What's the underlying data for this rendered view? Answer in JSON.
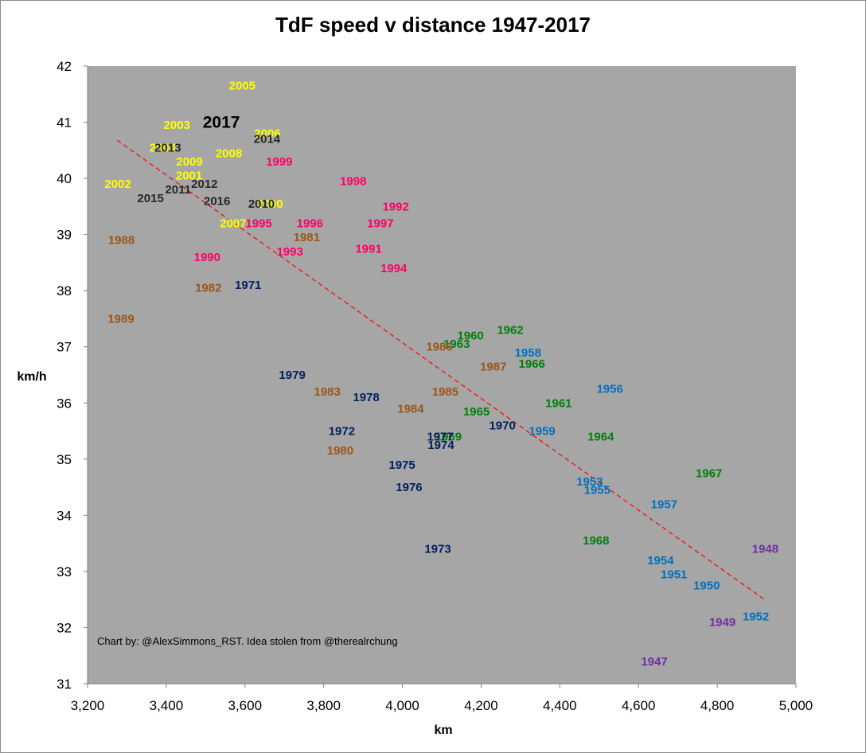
{
  "chart_data": {
    "type": "scatter",
    "title": "TdF speed v distance 1947-2017",
    "xlabel": "km",
    "ylabel": "km/h",
    "xlim": [
      3200,
      5000
    ],
    "ylim": [
      31,
      42
    ],
    "x_ticks": [
      "3,200",
      "3,400",
      "3,600",
      "3,800",
      "4,000",
      "4,200",
      "4,400",
      "4,600",
      "4,800",
      "5,000"
    ],
    "y_ticks": [
      "31",
      "32",
      "33",
      "34",
      "35",
      "36",
      "37",
      "38",
      "39",
      "40",
      "41",
      "42"
    ],
    "grid": false,
    "legend": "none",
    "plot_background": "#a6a6a6",
    "annotation": "Chart by: @AlexSimmons_RST. Idea stolen from  @therealrchung",
    "trendline": {
      "color": "#ff0000",
      "style": "dashed",
      "from": [
        3275,
        40.68
      ],
      "to": [
        4920,
        32.5
      ]
    },
    "decade_colors": {
      "1940s": "#7030a0",
      "1950s": "#0070c0",
      "1960s": "#00800a",
      "1970s": "#002060",
      "1980s": "#9c5518",
      "1990s": "#ff0066",
      "2000s": "#ffff00",
      "2010s": "#262626"
    },
    "points": [
      {
        "label": "1947",
        "x": 4640,
        "y": 31.4,
        "color": "#7030a0"
      },
      {
        "label": "1948",
        "x": 4922,
        "y": 33.4,
        "color": "#7030a0"
      },
      {
        "label": "1949",
        "x": 4813,
        "y": 32.1,
        "color": "#7030a0"
      },
      {
        "label": "1950",
        "x": 4773,
        "y": 32.75,
        "color": "#0070c0"
      },
      {
        "label": "1951",
        "x": 4690,
        "y": 32.95,
        "color": "#0070c0"
      },
      {
        "label": "1952",
        "x": 4898,
        "y": 32.2,
        "color": "#0070c0"
      },
      {
        "label": "1953",
        "x": 4476,
        "y": 34.6,
        "color": "#0070c0"
      },
      {
        "label": "1954",
        "x": 4656,
        "y": 33.2,
        "color": "#0070c0"
      },
      {
        "label": "1955",
        "x": 4495,
        "y": 34.45,
        "color": "#0070c0"
      },
      {
        "label": "1956",
        "x": 4527,
        "y": 36.25,
        "color": "#0070c0"
      },
      {
        "label": "1957",
        "x": 4665,
        "y": 34.2,
        "color": "#0070c0"
      },
      {
        "label": "1958",
        "x": 4319,
        "y": 36.9,
        "color": "#0070c0"
      },
      {
        "label": "1959",
        "x": 4355,
        "y": 35.5,
        "color": "#0070c0"
      },
      {
        "label": "1960",
        "x": 4173,
        "y": 37.2,
        "color": "#00800a"
      },
      {
        "label": "1961",
        "x": 4397,
        "y": 36.0,
        "color": "#00800a"
      },
      {
        "label": "1962",
        "x": 4274,
        "y": 37.3,
        "color": "#00800a"
      },
      {
        "label": "1963",
        "x": 4138,
        "y": 37.05,
        "color": "#00800a"
      },
      {
        "label": "1964",
        "x": 4504,
        "y": 35.4,
        "color": "#00800a"
      },
      {
        "label": "1965",
        "x": 4188,
        "y": 35.85,
        "color": "#00800a"
      },
      {
        "label": "1966",
        "x": 4329,
        "y": 36.7,
        "color": "#00800a"
      },
      {
        "label": "1967",
        "x": 4779,
        "y": 34.75,
        "color": "#00800a"
      },
      {
        "label": "1968",
        "x": 4492,
        "y": 33.55,
        "color": "#00800a"
      },
      {
        "label": "1969",
        "x": 4117,
        "y": 35.4,
        "color": "#00800a"
      },
      {
        "label": "1970",
        "x": 4254,
        "y": 35.6,
        "color": "#002060"
      },
      {
        "label": "1971",
        "x": 3608,
        "y": 38.1,
        "color": "#002060"
      },
      {
        "label": "1972",
        "x": 3846,
        "y": 35.5,
        "color": "#002060"
      },
      {
        "label": "1973",
        "x": 4090,
        "y": 33.4,
        "color": "#002060"
      },
      {
        "label": "1974",
        "x": 4098,
        "y": 35.25,
        "color": "#002060"
      },
      {
        "label": "1975",
        "x": 3999,
        "y": 34.9,
        "color": "#002060"
      },
      {
        "label": "1976",
        "x": 4017,
        "y": 34.5,
        "color": "#002060"
      },
      {
        "label": "1977",
        "x": 4096,
        "y": 35.4,
        "color": "#002060"
      },
      {
        "label": "1978",
        "x": 3908,
        "y": 36.1,
        "color": "#002060"
      },
      {
        "label": "1979",
        "x": 3720,
        "y": 36.5,
        "color": "#002060"
      },
      {
        "label": "1980",
        "x": 3842,
        "y": 35.15,
        "color": "#9c5518"
      },
      {
        "label": "1981",
        "x": 3757,
        "y": 38.95,
        "color": "#9c5518"
      },
      {
        "label": "1982",
        "x": 3507,
        "y": 38.05,
        "color": "#9c5518"
      },
      {
        "label": "1983",
        "x": 3809,
        "y": 36.2,
        "color": "#9c5518"
      },
      {
        "label": "1984",
        "x": 4021,
        "y": 35.9,
        "color": "#9c5518"
      },
      {
        "label": "1985",
        "x": 4109,
        "y": 36.2,
        "color": "#9c5518"
      },
      {
        "label": "1986",
        "x": 4094,
        "y": 37.0,
        "color": "#9c5518"
      },
      {
        "label": "1987",
        "x": 4231,
        "y": 36.65,
        "color": "#9c5518"
      },
      {
        "label": "1988",
        "x": 3286,
        "y": 38.9,
        "color": "#9c5518"
      },
      {
        "label": "1989",
        "x": 3285,
        "y": 37.5,
        "color": "#9c5518"
      },
      {
        "label": "1990",
        "x": 3504,
        "y": 38.6,
        "color": "#ff0066"
      },
      {
        "label": "1991",
        "x": 3914,
        "y": 38.75,
        "color": "#ff0066"
      },
      {
        "label": "1992",
        "x": 3983,
        "y": 39.5,
        "color": "#ff0066"
      },
      {
        "label": "1993",
        "x": 3714,
        "y": 38.7,
        "color": "#ff0066"
      },
      {
        "label": "1994",
        "x": 3978,
        "y": 38.4,
        "color": "#ff0066"
      },
      {
        "label": "1995",
        "x": 3635,
        "y": 39.2,
        "color": "#ff0066"
      },
      {
        "label": "1996",
        "x": 3765,
        "y": 39.2,
        "color": "#ff0066"
      },
      {
        "label": "1997",
        "x": 3944,
        "y": 39.2,
        "color": "#ff0066"
      },
      {
        "label": "1998",
        "x": 3875,
        "y": 39.95,
        "color": "#ff0066"
      },
      {
        "label": "1999",
        "x": 3687,
        "y": 40.3,
        "color": "#ff0066"
      },
      {
        "label": "2000",
        "x": 3663,
        "y": 39.55,
        "color": "#ffff00"
      },
      {
        "label": "2001",
        "x": 3458,
        "y": 40.05,
        "color": "#ffff00"
      },
      {
        "label": "2002",
        "x": 3277,
        "y": 39.9,
        "color": "#ffff00"
      },
      {
        "label": "2003",
        "x": 3427,
        "y": 40.95,
        "color": "#ffff00"
      },
      {
        "label": "2004",
        "x": 3391,
        "y": 40.55,
        "color": "#ffff00"
      },
      {
        "label": "2005",
        "x": 3593,
        "y": 41.65,
        "color": "#ffff00"
      },
      {
        "label": "2006",
        "x": 3657,
        "y": 40.8,
        "color": "#ffff00"
      },
      {
        "label": "2007",
        "x": 3570,
        "y": 39.2,
        "color": "#ffff00"
      },
      {
        "label": "2008",
        "x": 3559,
        "y": 40.45,
        "color": "#ffff00"
      },
      {
        "label": "2009",
        "x": 3459,
        "y": 40.3,
        "color": "#ffff00"
      },
      {
        "label": "2010",
        "x": 3642,
        "y": 39.55,
        "color": "#262626"
      },
      {
        "label": "2011",
        "x": 3430,
        "y": 39.8,
        "color": "#262626"
      },
      {
        "label": "2012",
        "x": 3497,
        "y": 39.9,
        "color": "#262626"
      },
      {
        "label": "2013",
        "x": 3404,
        "y": 40.55,
        "color": "#262626"
      },
      {
        "label": "2014",
        "x": 3656,
        "y": 40.7,
        "color": "#262626"
      },
      {
        "label": "2015",
        "x": 3360,
        "y": 39.65,
        "color": "#262626"
      },
      {
        "label": "2016",
        "x": 3529,
        "y": 39.6,
        "color": "#262626"
      },
      {
        "label": "2017",
        "x": 3540,
        "y": 41.0,
        "color": "#000000",
        "highlight": true
      }
    ]
  }
}
